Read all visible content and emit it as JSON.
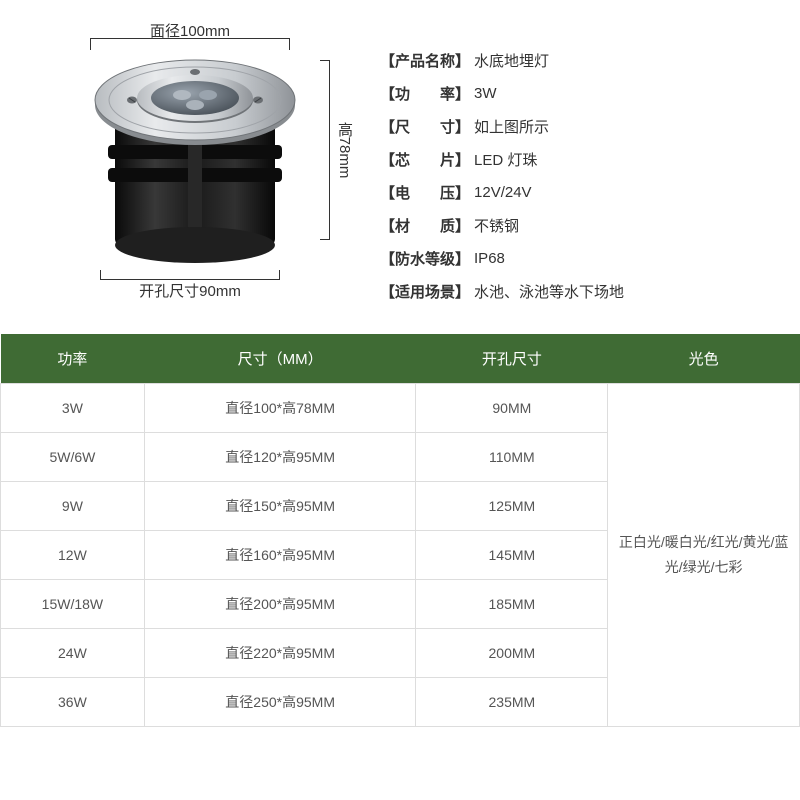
{
  "dimensions": {
    "top_label": "面径100mm",
    "right_label": "高78mm",
    "bottom_label": "开孔尺寸90mm"
  },
  "specs": [
    {
      "label": "【产品名称】",
      "value": "水底地埋灯"
    },
    {
      "label": "【功　　率】",
      "value": "3W"
    },
    {
      "label": "【尺　　寸】",
      "value": "如上图所示"
    },
    {
      "label": "【芯　　片】",
      "value": "LED 灯珠"
    },
    {
      "label": "【电　　压】",
      "value": "12V/24V"
    },
    {
      "label": "【材　　质】",
      "value": "不锈钢"
    },
    {
      "label": "【防水等级】",
      "value": "IP68"
    },
    {
      "label": "【适用场景】",
      "value": "水池、泳池等水下场地"
    }
  ],
  "table": {
    "headers": [
      "功率",
      "尺寸（MM）",
      "开孔尺寸",
      "光色"
    ],
    "rows": [
      {
        "power": "3W",
        "size": "直径100*高78MM",
        "hole": "90MM"
      },
      {
        "power": "5W/6W",
        "size": "直径120*高95MM",
        "hole": "110MM"
      },
      {
        "power": "9W",
        "size": "直径150*高95MM",
        "hole": "125MM"
      },
      {
        "power": "12W",
        "size": "直径160*高95MM",
        "hole": "145MM"
      },
      {
        "power": "15W/18W",
        "size": "直径200*高95MM",
        "hole": "185MM"
      },
      {
        "power": "24W",
        "size": "直径220*高95MM",
        "hole": "200MM"
      },
      {
        "power": "36W",
        "size": "直径250*高95MM",
        "hole": "235MM"
      }
    ],
    "color_merged": "正白光/暖白光/红光/黄光/蓝光/绿光/七彩",
    "col_widths": [
      "18%",
      "34%",
      "24%",
      "24%"
    ],
    "header_bg": "#3f6b34",
    "header_color": "#ffffff",
    "border_color": "#dddddd"
  },
  "product_colors": {
    "steel_light": "#d8dadc",
    "steel_dark": "#9fa3a8",
    "body_black": "#1a1a1a",
    "body_highlight": "#3a3a3a",
    "lens": "#6b7680",
    "led": "#a8b0b8"
  }
}
